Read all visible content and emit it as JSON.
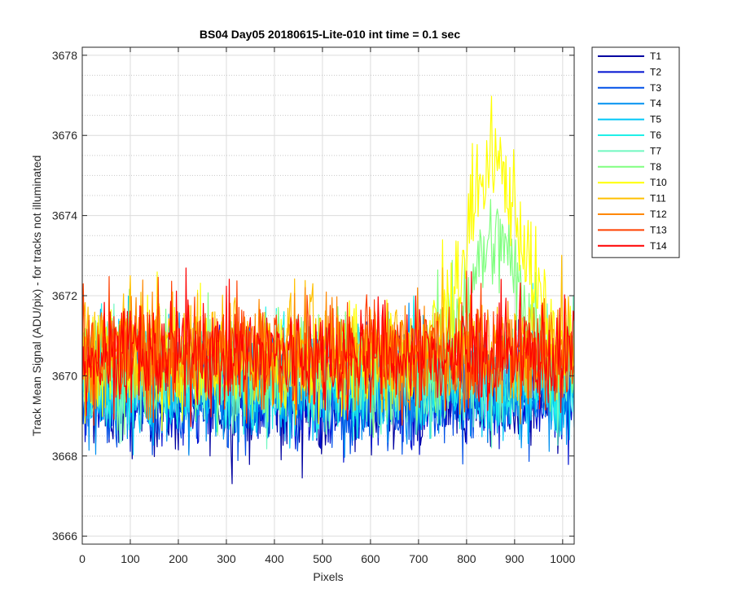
{
  "chart_data": {
    "type": "line",
    "title": "BS04 Day05 20180615-Lite-010 int time = 0.1 sec",
    "xlabel": "Pixels",
    "ylabel": "Track Mean Signal (ADU/pix) - for tracks not illuminated",
    "xlim": [
      0,
      1024
    ],
    "ylim": [
      3665.8,
      3678.2
    ],
    "xticks": [
      0,
      100,
      200,
      300,
      400,
      500,
      600,
      700,
      800,
      900,
      1000
    ],
    "xtick_labels": [
      "0",
      "100",
      "200",
      "300",
      "400",
      "500",
      "600",
      "700",
      "800",
      "900",
      "1000"
    ],
    "yticks": [
      3666,
      3668,
      3670,
      3672,
      3674,
      3676,
      3678
    ],
    "ytick_labels": [
      "3666",
      "3668",
      "3670",
      "3672",
      "3674",
      "3676",
      "3678"
    ],
    "grid": true,
    "minor_grid_y": true,
    "legend_position": "outside-right",
    "series": [
      {
        "name": "T1",
        "color": "#0000a0",
        "base": 3669.4,
        "amp": 0.95
      },
      {
        "name": "T2",
        "color": "#0010d0",
        "base": 3669.5,
        "amp": 0.95
      },
      {
        "name": "T3",
        "color": "#0050e8",
        "base": 3669.6,
        "amp": 0.95
      },
      {
        "name": "T4",
        "color": "#0090f0",
        "base": 3669.7,
        "amp": 0.95
      },
      {
        "name": "T5",
        "color": "#00c8f8",
        "base": 3669.8,
        "amp": 0.95
      },
      {
        "name": "T6",
        "color": "#20f0e8",
        "base": 3669.9,
        "amp": 0.95
      },
      {
        "name": "T7",
        "color": "#70f8c0",
        "base": 3670.0,
        "amp": 0.95
      },
      {
        "name": "T8",
        "color": "#80ff80",
        "base": 3670.2,
        "amp": 0.95,
        "bump_peak": 3673.3,
        "bump_center": 860,
        "bump_width": 80
      },
      {
        "name": "T10",
        "color": "#ffff00",
        "base": 3670.4,
        "amp": 0.95,
        "bump_peak": 3675.2,
        "bump_center": 860,
        "bump_width": 85
      },
      {
        "name": "T11",
        "color": "#ffc000",
        "base": 3670.6,
        "amp": 0.95
      },
      {
        "name": "T12",
        "color": "#ff8800",
        "base": 3670.6,
        "amp": 0.95
      },
      {
        "name": "T13",
        "color": "#ff4000",
        "base": 3670.5,
        "amp": 0.95
      },
      {
        "name": "T14",
        "color": "#ff0000",
        "base": 3670.5,
        "amp": 0.95
      }
    ]
  }
}
